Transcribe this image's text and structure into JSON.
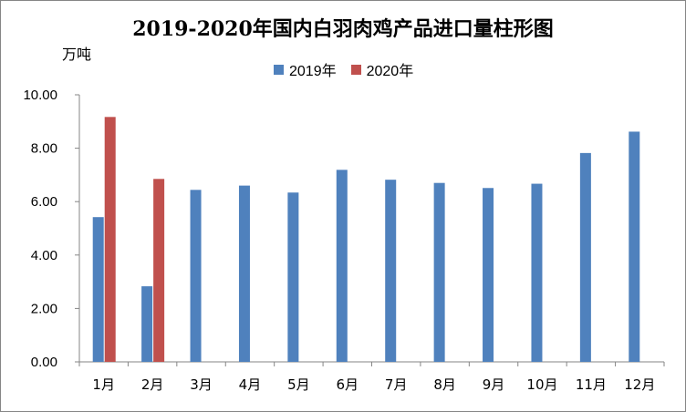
{
  "chart_data": {
    "type": "bar",
    "title": "2019-2020年国内白羽肉鸡产品进口量柱形图",
    "unit_label": "万吨",
    "categories": [
      "1月",
      "2月",
      "3月",
      "4月",
      "5月",
      "6月",
      "7月",
      "8月",
      "9月",
      "10月",
      "11月",
      "12月"
    ],
    "series": [
      {
        "name": "2019年",
        "color": "#4F81BD",
        "values": [
          5.42,
          2.83,
          6.44,
          6.6,
          6.34,
          7.19,
          6.82,
          6.7,
          6.51,
          6.67,
          7.82,
          8.62
        ]
      },
      {
        "name": "2020年",
        "color": "#C0504D",
        "values": [
          9.17,
          6.85,
          null,
          null,
          null,
          null,
          null,
          null,
          null,
          null,
          null,
          null
        ]
      }
    ],
    "ylim": [
      0,
      10
    ],
    "yticks": [
      0,
      2,
      4,
      6,
      8,
      10
    ],
    "ytick_labels": [
      "0.00",
      "2.00",
      "4.00",
      "6.00",
      "8.00",
      "10.00"
    ],
    "grid": false,
    "legend_position": "top"
  }
}
